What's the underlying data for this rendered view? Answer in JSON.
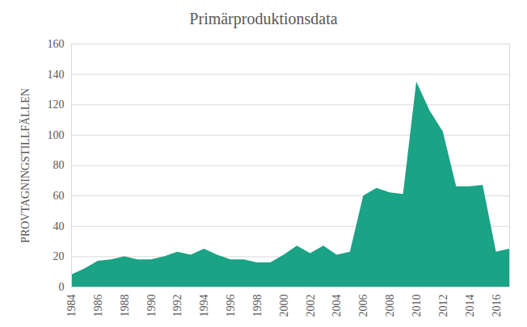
{
  "chart_data": {
    "type": "area",
    "title": "Primärproduktionsdata",
    "y_label": "PROVTAGNINGSTILLFÄLLEN",
    "x": [
      1984,
      1985,
      1986,
      1987,
      1988,
      1989,
      1990,
      1991,
      1992,
      1993,
      1994,
      1995,
      1996,
      1997,
      1998,
      1999,
      2000,
      2001,
      2002,
      2003,
      2004,
      2005,
      2006,
      2007,
      2008,
      2009,
      2010,
      2011,
      2012,
      2013,
      2014,
      2015,
      2016,
      2017
    ],
    "values": [
      8,
      12,
      17,
      18,
      20,
      18,
      18,
      20,
      23,
      21,
      25,
      21,
      18,
      18,
      16,
      16,
      21,
      27,
      22,
      27,
      21,
      23,
      60,
      65,
      62,
      61,
      135,
      116,
      102,
      66,
      66,
      67,
      23,
      25
    ],
    "color": "#1aa385",
    "xlim": [
      1984,
      2017
    ],
    "xticks": [
      1984,
      1986,
      1988,
      1990,
      1992,
      1994,
      1996,
      1998,
      2000,
      2002,
      2004,
      2006,
      2008,
      2010,
      2012,
      2014,
      2016
    ],
    "ylim": [
      0,
      160
    ],
    "yticks": [
      0,
      20,
      40,
      60,
      80,
      100,
      120,
      140,
      160
    ],
    "grid": true
  }
}
